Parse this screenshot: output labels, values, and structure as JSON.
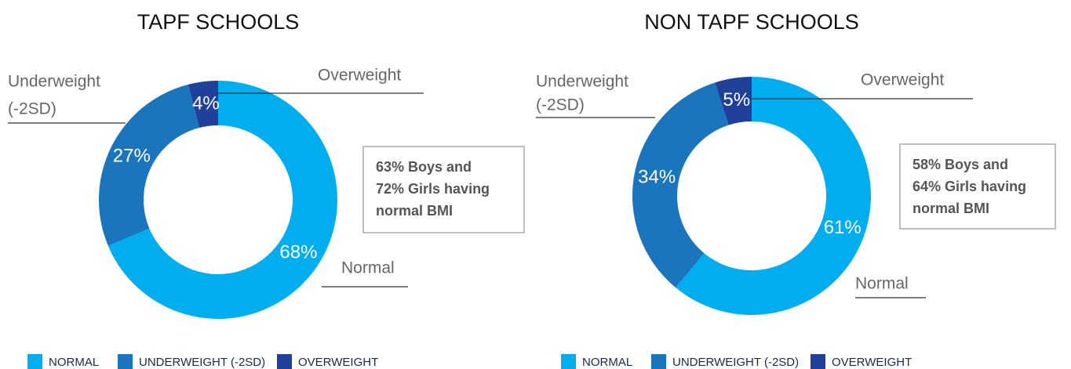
{
  "chart_data": [
    {
      "type": "pie",
      "title": "TAPF SCHOOLS",
      "categories": [
        "NORMAL",
        "UNDERWEIGHT (-2SD)",
        "OVERWEIGHT"
      ],
      "values": [
        68,
        27,
        4
      ],
      "value_labels": [
        "68%",
        "27%",
        "4%"
      ],
      "labels": [
        [
          "Normal"
        ],
        [
          "Underweight",
          "(-2SD)"
        ],
        [
          "Overweight"
        ]
      ],
      "colors": [
        "#00aeef",
        "#1b75bc",
        "#21409a"
      ],
      "annotation": [
        "63% Boys and",
        "72% Girls having",
        "normal BMI"
      ]
    },
    {
      "type": "pie",
      "title": "NON TAPF SCHOOLS",
      "categories": [
        "NORMAL",
        "UNDERWEIGHT (-2SD)",
        "OVERWEIGHT"
      ],
      "values": [
        61,
        34,
        5
      ],
      "value_labels": [
        "61%",
        "34%",
        "5%"
      ],
      "labels": [
        [
          "Normal"
        ],
        [
          "Underweight",
          "(-2SD)"
        ],
        [
          "Overweight"
        ]
      ],
      "colors": [
        "#00aeef",
        "#1b75bc",
        "#21409a"
      ],
      "annotation": [
        "58% Boys and",
        "64% Girls having",
        "normal BMI"
      ]
    }
  ]
}
